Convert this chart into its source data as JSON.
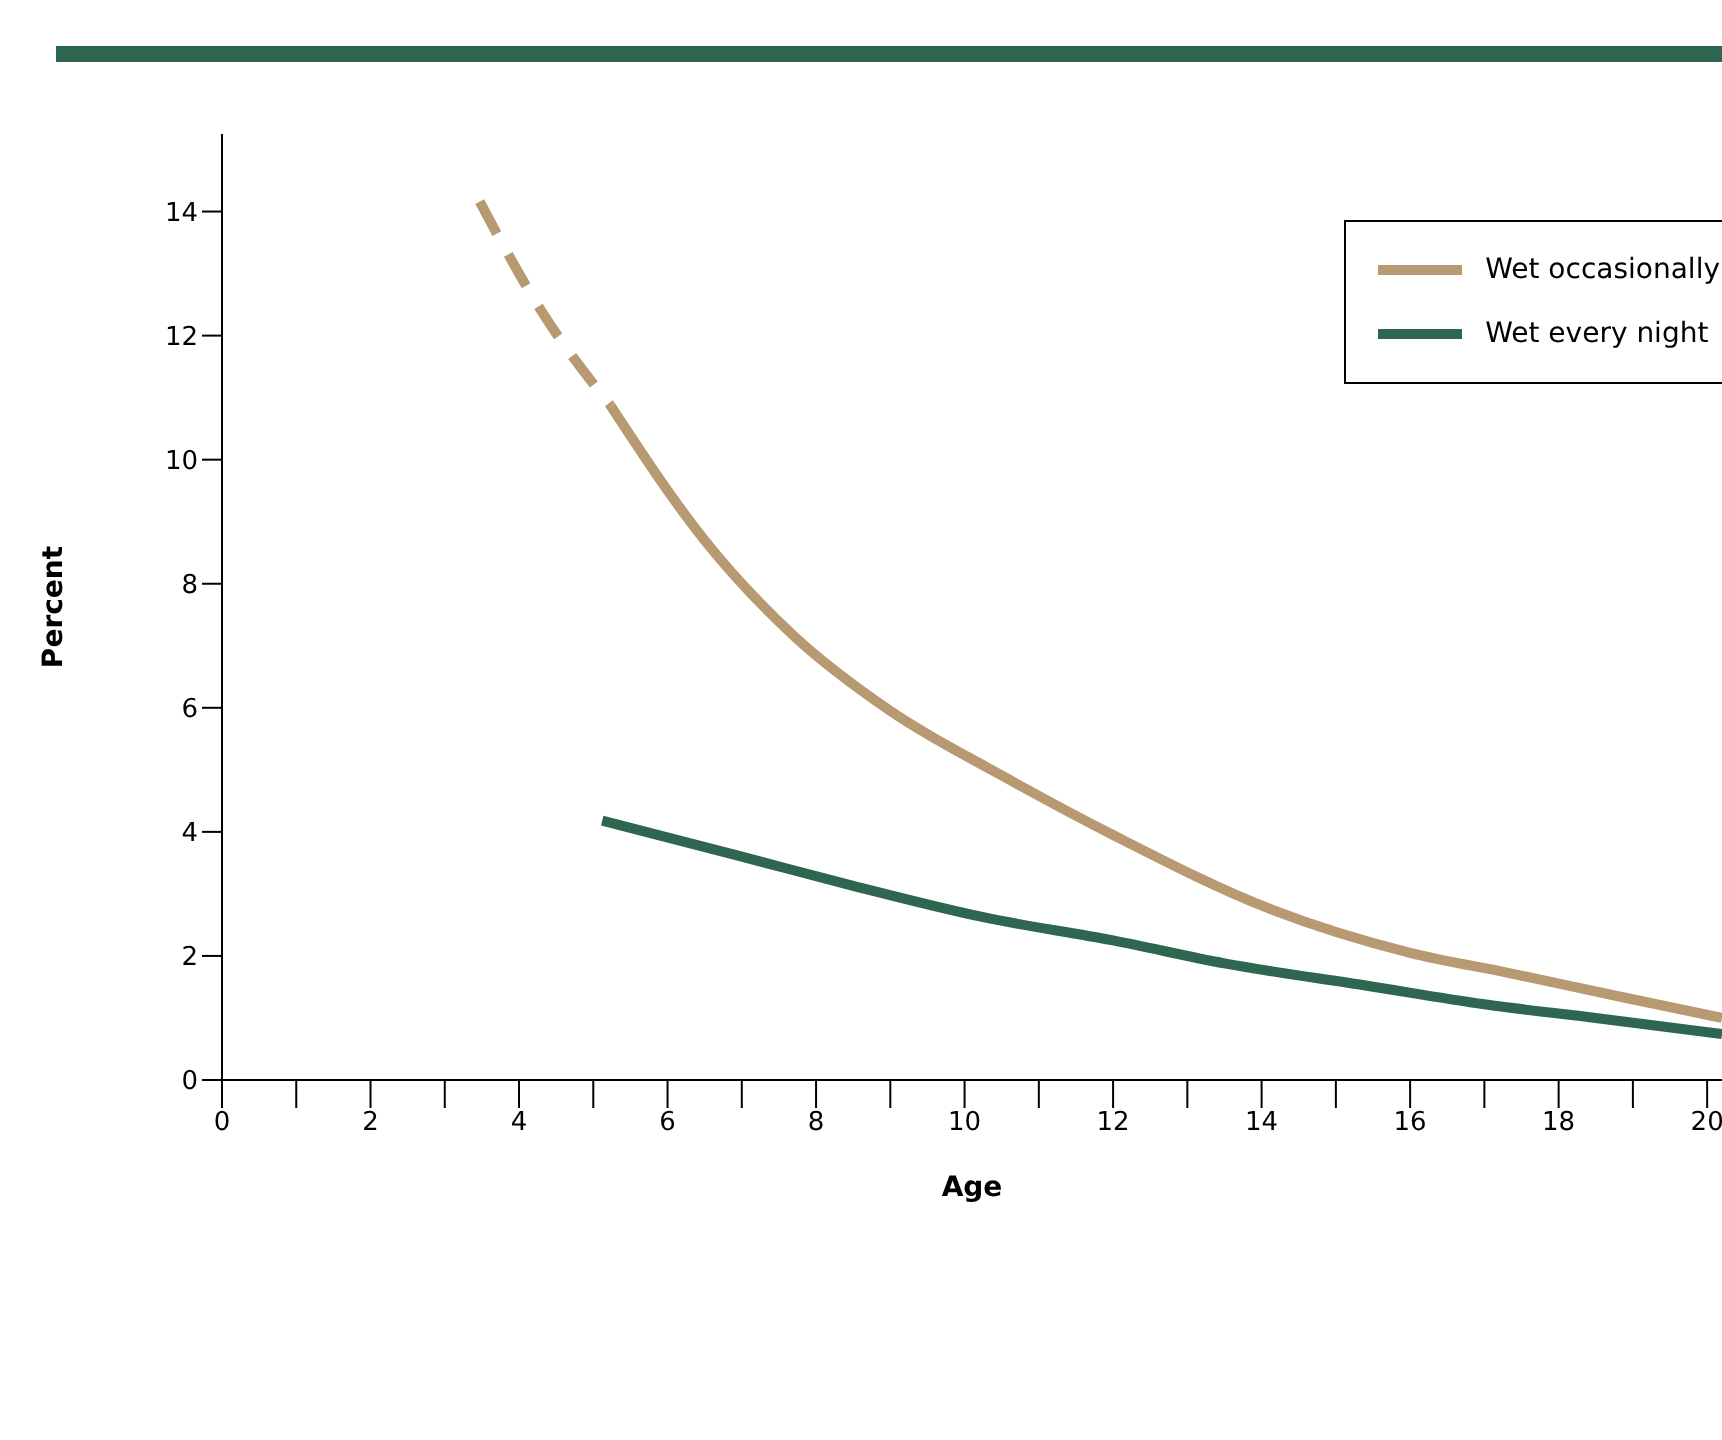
{
  "chart_data": {
    "type": "line",
    "xlabel": "Age",
    "ylabel": "Percent",
    "xlim": [
      0,
      20.2
    ],
    "ylim": [
      0,
      15.25
    ],
    "xticks": [
      0,
      {
        "value": 1,
        "label": null
      },
      2,
      {
        "value": 3,
        "label": null
      },
      4,
      {
        "value": 5,
        "label": null
      },
      6,
      {
        "value": 7,
        "label": null
      },
      8,
      {
        "value": 9,
        "label": null
      },
      10,
      {
        "value": 11,
        "label": null
      },
      12,
      {
        "value": 13,
        "label": null
      },
      14,
      {
        "value": 15,
        "label": null
      },
      16,
      {
        "value": 17,
        "label": null
      },
      18,
      {
        "value": 19,
        "label": null
      },
      20
    ],
    "yticks": [
      0,
      2,
      4,
      6,
      8,
      10,
      12,
      14
    ],
    "grid": false,
    "legend": "top right",
    "marker": "none",
    "series": [
      {
        "color": "#b89a72",
        "line_style": "dashed",
        "x": [
          3.47,
          4.3,
          5.24
        ],
        "values": [
          14.16,
          12.4,
          10.86
        ]
      },
      {
        "name": "Wet occasionally",
        "color": "#b89a72",
        "line_style": "solid",
        "x": [
          5.24,
          6.5,
          7.7,
          9,
          10.53,
          12,
          14.13,
          16,
          17.35,
          18.8,
          20.2
        ],
        "values": [
          10.86,
          8.7,
          7.16,
          5.95,
          4.89,
          3.95,
          2.75,
          2.05,
          1.72,
          1.35,
          1.0
        ]
      },
      {
        "name": "Wet every night",
        "color": "#2e6650",
        "line_style": "solid",
        "x": [
          5.12,
          7,
          8.5,
          10.27,
          12,
          13.5,
          15.42,
          17,
          18.5,
          20.2
        ],
        "values": [
          4.18,
          3.6,
          3.13,
          2.62,
          2.25,
          1.88,
          1.52,
          1.22,
          1.0,
          0.74
        ]
      }
    ]
  }
}
